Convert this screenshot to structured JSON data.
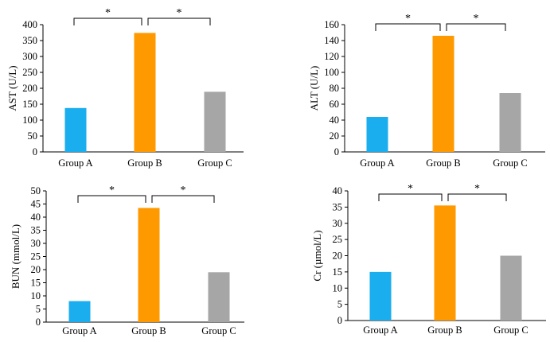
{
  "chart_data": [
    {
      "type": "bar",
      "categories": [
        "Group A",
        "Group B",
        "Group C"
      ],
      "values": [
        138,
        374,
        189
      ],
      "colors": [
        "#1aaeee",
        "#ff9900",
        "#a6a6a6"
      ],
      "ylabel": "AST (U/L)",
      "ylim": [
        0,
        400
      ],
      "yticks": [
        "0",
        "50",
        "100",
        "150",
        "200",
        "250",
        "300",
        "350",
        "400"
      ],
      "significance": [
        {
          "from": "Group A",
          "to": "Group B",
          "label": "*"
        },
        {
          "from": "Group B",
          "to": "Group C",
          "label": "*"
        }
      ]
    },
    {
      "type": "bar",
      "categories": [
        "Group A",
        "Group B",
        "Group C"
      ],
      "values": [
        44,
        146,
        74
      ],
      "colors": [
        "#1aaeee",
        "#ff9900",
        "#a6a6a6"
      ],
      "ylabel": "ALT (U/L)",
      "ylim": [
        0,
        160
      ],
      "yticks": [
        "0",
        "20",
        "40",
        "60",
        "80",
        "100",
        "120",
        "140",
        "160"
      ],
      "significance": [
        {
          "from": "Group A",
          "to": "Group B",
          "label": "*"
        },
        {
          "from": "Group B",
          "to": "Group C",
          "label": "*"
        }
      ]
    },
    {
      "type": "bar",
      "categories": [
        "Group A",
        "Group B",
        "Group C"
      ],
      "values": [
        8,
        43.5,
        19
      ],
      "colors": [
        "#1aaeee",
        "#ff9900",
        "#a6a6a6"
      ],
      "ylabel": "BUN (mmol/L)",
      "ylim": [
        0,
        50
      ],
      "yticks": [
        "0",
        "5",
        "10",
        "15",
        "20",
        "25",
        "30",
        "35",
        "40",
        "45",
        "50"
      ],
      "significance": [
        {
          "from": "Group A",
          "to": "Group B",
          "label": "*"
        },
        {
          "from": "Group B",
          "to": "Group C",
          "label": "*"
        }
      ]
    },
    {
      "type": "bar",
      "categories": [
        "Group A",
        "Group B",
        "Group C"
      ],
      "values": [
        15,
        35.5,
        20
      ],
      "colors": [
        "#1aaeee",
        "#ff9900",
        "#a6a6a6"
      ],
      "ylabel": "Cr (µmol/L)",
      "ylim": [
        0,
        40
      ],
      "yticks": [
        "0",
        "5",
        "10",
        "15",
        "20",
        "25",
        "30",
        "35",
        "40"
      ],
      "significance": [
        {
          "from": "Group A",
          "to": "Group B",
          "label": "*"
        },
        {
          "from": "Group B",
          "to": "Group C",
          "label": "*"
        }
      ]
    }
  ]
}
